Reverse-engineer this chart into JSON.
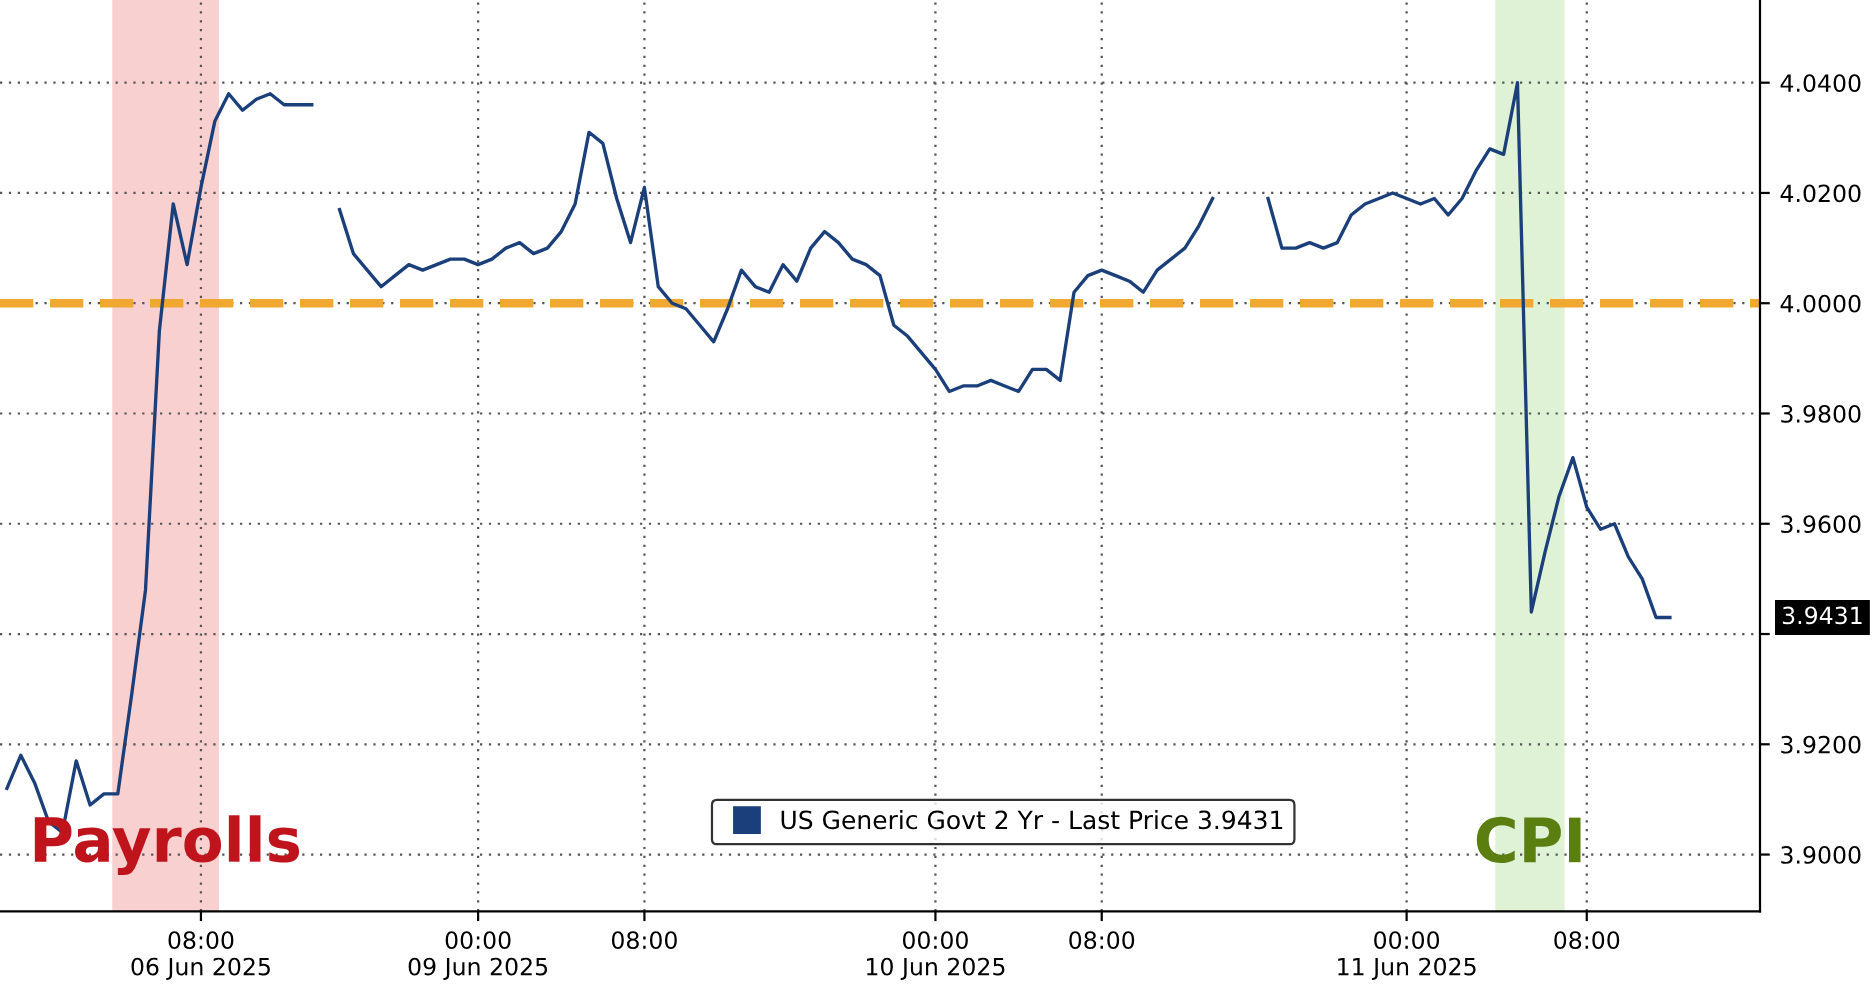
{
  "chart_data": {
    "type": "line",
    "categories": [
      null,
      null,
      null,
      null,
      null,
      null,
      null,
      null,
      null,
      null,
      null,
      null,
      null,
      null,
      "08:00\n06 Jun 2025",
      null,
      null,
      null,
      null,
      null,
      null,
      null,
      null,
      null,
      null,
      null,
      null,
      null,
      null,
      null,
      null,
      null,
      null,
      null,
      "00:00\n09 Jun 2025",
      null,
      null,
      null,
      null,
      null,
      null,
      null,
      null,
      null,
      null,
      null,
      "08:00",
      null,
      null,
      null,
      null,
      null,
      null,
      null,
      null,
      null,
      null,
      null,
      null,
      null,
      null,
      null,
      null,
      null,
      null,
      null,
      null,
      "00:00\n10 Jun 2025",
      null,
      null,
      null,
      null,
      null,
      null,
      null,
      null,
      null,
      null,
      null,
      "08:00",
      null,
      null,
      null,
      null,
      null,
      null,
      null,
      null,
      null,
      null,
      null,
      null,
      null,
      null,
      null,
      null,
      null,
      null,
      null,
      null,
      null,
      "00:00\n11 Jun 2025",
      null,
      null,
      null,
      null,
      null,
      null,
      null,
      null,
      null,
      null,
      null,
      null,
      "08:00",
      null,
      null,
      null,
      null,
      null,
      null,
      null,
      null,
      null,
      null,
      null,
      null
    ],
    "series": [
      {
        "name": "US Generic Govt 2 Yr - Last Price 3.9431",
        "color": "#1a3f7a",
        "values": [
          3.912,
          3.918,
          3.913,
          3.906,
          3.904,
          3.917,
          3.909,
          3.911,
          3.911,
          3.929,
          3.948,
          3.995,
          4.018,
          4.007,
          4.021,
          4.033,
          4.038,
          4.035,
          4.037,
          4.038,
          4.036,
          4.036,
          4.036,
          null,
          4.017,
          4.009,
          4.006,
          4.003,
          4.005,
          4.007,
          4.006,
          4.007,
          4.008,
          4.008,
          4.007,
          4.008,
          4.01,
          4.011,
          4.009,
          4.01,
          4.013,
          4.018,
          4.031,
          4.029,
          4.019,
          4.011,
          4.021,
          4.003,
          4.0,
          3.999,
          3.996,
          3.993,
          3.999,
          4.006,
          4.003,
          4.002,
          4.007,
          4.004,
          4.01,
          4.013,
          4.011,
          4.008,
          4.007,
          4.005,
          3.996,
          3.994,
          3.991,
          3.988,
          3.984,
          3.985,
          3.985,
          3.986,
          3.985,
          3.984,
          3.988,
          3.988,
          3.986,
          4.002,
          4.005,
          4.006,
          4.005,
          4.004,
          4.002,
          4.006,
          4.008,
          4.01,
          4.014,
          4.019,
          null,
          null,
          null,
          4.019,
          4.01,
          4.01,
          4.011,
          4.01,
          4.011,
          4.016,
          4.018,
          4.019,
          4.02,
          4.019,
          4.018,
          4.019,
          4.016,
          4.019,
          4.024,
          4.028,
          4.027,
          4.04,
          3.944,
          3.955,
          3.965,
          3.972,
          3.963,
          3.959,
          3.96,
          3.954,
          3.95,
          3.943,
          3.943,
          null,
          null,
          null,
          null,
          null,
          null
        ]
      }
    ],
    "ylim": [
      3.8897,
      4.055
    ],
    "yticks": [
      {
        "value": 3.9,
        "label": "3.9000"
      },
      {
        "value": 3.92,
        "label": "3.9200"
      },
      {
        "value": 3.94,
        "label": null
      },
      {
        "value": 3.96,
        "label": "3.9600"
      },
      {
        "value": 3.98,
        "label": "3.9800"
      },
      {
        "value": 4.0,
        "label": "4.0000"
      },
      {
        "value": 4.02,
        "label": "4.0200"
      },
      {
        "value": 4.04,
        "label": "4.0400"
      }
    ],
    "grid": true,
    "legend": "bottom",
    "line_style": "solid",
    "ref_lines": [
      {
        "axis": "y",
        "value": 4.0,
        "color": "#f0a830",
        "line_style": "dashed"
      }
    ],
    "annotations": [
      "Payrolls",
      "CPI",
      "3.9431"
    ]
  }
}
